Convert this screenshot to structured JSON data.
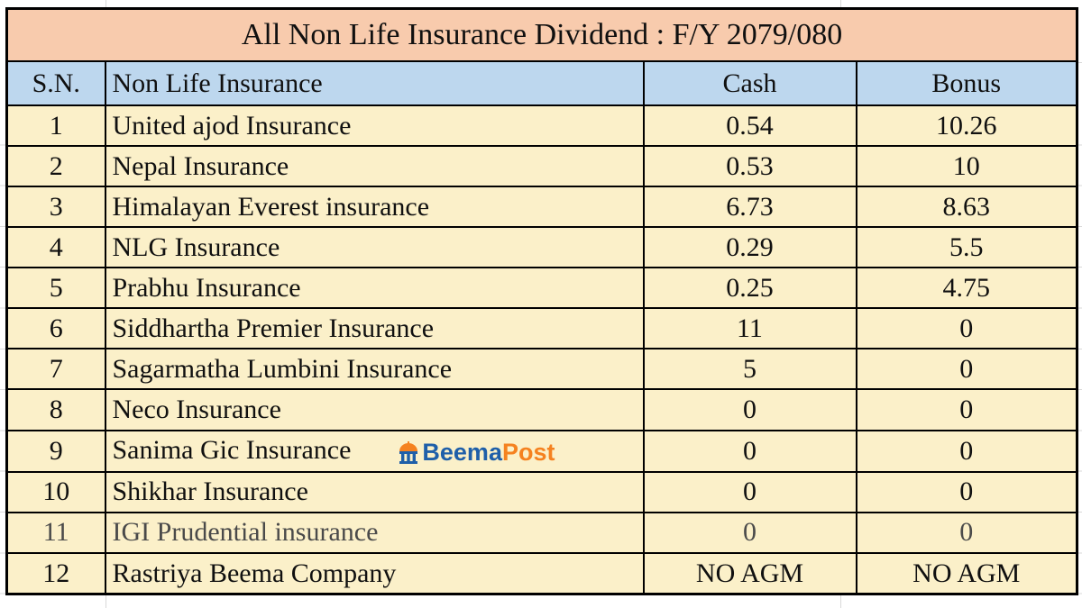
{
  "chart_data": {
    "type": "table",
    "title": "All Non Life Insurance Dividend : F/Y 2079/080",
    "columns": [
      "S.N.",
      "Non Life Insurance",
      "Cash",
      "Bonus"
    ],
    "rows": [
      [
        "1",
        "United ajod Insurance",
        "0.54",
        "10.26"
      ],
      [
        "2",
        "Nepal Insurance",
        "0.53",
        "10"
      ],
      [
        "3",
        "Himalayan Everest insurance",
        "6.73",
        "8.63"
      ],
      [
        "4",
        "NLG Insurance",
        "0.29",
        "5.5"
      ],
      [
        "5",
        "Prabhu Insurance",
        "0.25",
        "4.75"
      ],
      [
        "6",
        "Siddhartha Premier Insurance",
        "11",
        "0"
      ],
      [
        "7",
        "Sagarmatha Lumbini Insurance",
        "5",
        "0"
      ],
      [
        "8",
        "Neco Insurance",
        "0",
        "0"
      ],
      [
        "9",
        "Sanima Gic Insurance",
        "0",
        "0"
      ],
      [
        "10",
        "Shikhar Insurance",
        "0",
        "0"
      ],
      [
        "11",
        "IGI Prudential insurance",
        "0",
        "0"
      ],
      [
        "12",
        "Rastriya Beema Company",
        "NO AGM",
        "NO AGM"
      ]
    ],
    "layout_hints": {
      "title_row": "merged across all columns",
      "grid": "black borders on every cell"
    }
  },
  "style": {
    "title_bg": "#F8CBAD",
    "header_bg": "#BDD7EE",
    "row_bg": "#FBF0C9",
    "border_color": "#000000",
    "text_color": "#101010",
    "muted_text_color": "#4A4A4A"
  },
  "watermark": {
    "row_index": 8,
    "text_primary": "Beema",
    "text_secondary": "Post",
    "primary_color": "#1F5FA9",
    "secondary_color": "#F58220",
    "icon": "pavilion-icon"
  },
  "muted_row_index": 10
}
